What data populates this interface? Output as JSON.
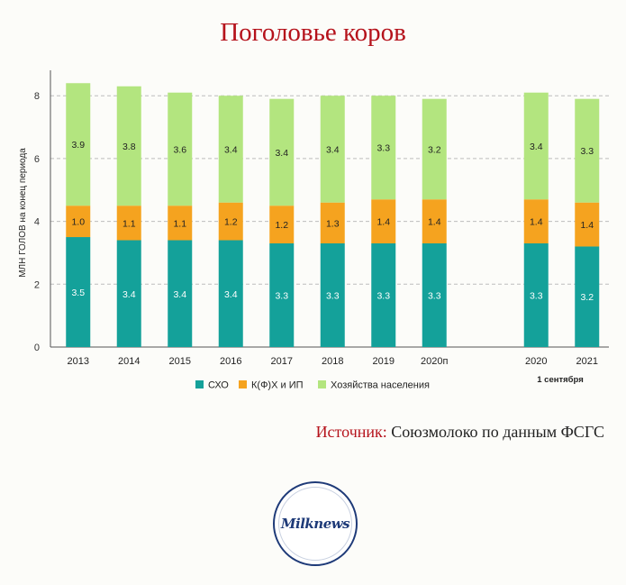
{
  "title": "Поголовье коров",
  "source": {
    "label": "Источник:",
    "text": "Союзмолоко по данным ФСГС"
  },
  "logo": {
    "text": "Milknews"
  },
  "colors": {
    "sho": "#14a19a",
    "kfh": "#f5a31f",
    "households": "#b3e57f",
    "grid": "#bdbdbd",
    "axis": "#555555"
  },
  "chart_data": {
    "type": "bar",
    "stacked": true,
    "ylabel": "МЛН ГОЛОВ на конец периода",
    "xlabel": "",
    "ylim": [
      0,
      8.5
    ],
    "yticks": [
      0,
      2,
      4,
      6,
      8
    ],
    "grid": true,
    "legend_position": "bottom",
    "categories": [
      "2013",
      "2014",
      "2015",
      "2016",
      "2017",
      "2018",
      "2019",
      "2020п",
      "",
      "2020",
      "2021"
    ],
    "group_label": "1 сентября",
    "series": [
      {
        "name": "СХО",
        "color": "#14a19a",
        "values": [
          3.5,
          3.4,
          3.4,
          3.4,
          3.3,
          3.3,
          3.3,
          3.3,
          null,
          3.3,
          3.2
        ],
        "labels": [
          "3.5",
          "3.4",
          "3.4",
          "3.4",
          "3.3",
          "3.3",
          "3.3",
          "3.3",
          null,
          "3.3",
          "3.2"
        ]
      },
      {
        "name": "К(Ф)Х и ИП",
        "color": "#f5a31f",
        "values": [
          1.0,
          1.1,
          1.1,
          1.2,
          1.2,
          1.3,
          1.4,
          1.4,
          null,
          1.4,
          1.4
        ],
        "labels": [
          "1.0",
          "1.1",
          "1.1",
          "1.2",
          "1.2",
          "1.3",
          "1.4",
          "1.4",
          null,
          "1.4",
          "1.4"
        ]
      },
      {
        "name": "Хозяйства населения",
        "color": "#b3e57f",
        "values": [
          3.9,
          3.8,
          3.6,
          3.4,
          3.4,
          3.4,
          3.3,
          3.2,
          null,
          3.4,
          3.3
        ],
        "labels": [
          "3.9",
          "3.8",
          "3.6",
          "3.4",
          "3.4",
          "3.4",
          "3.3",
          "3.2",
          null,
          "3.4",
          "3.3"
        ]
      }
    ]
  }
}
